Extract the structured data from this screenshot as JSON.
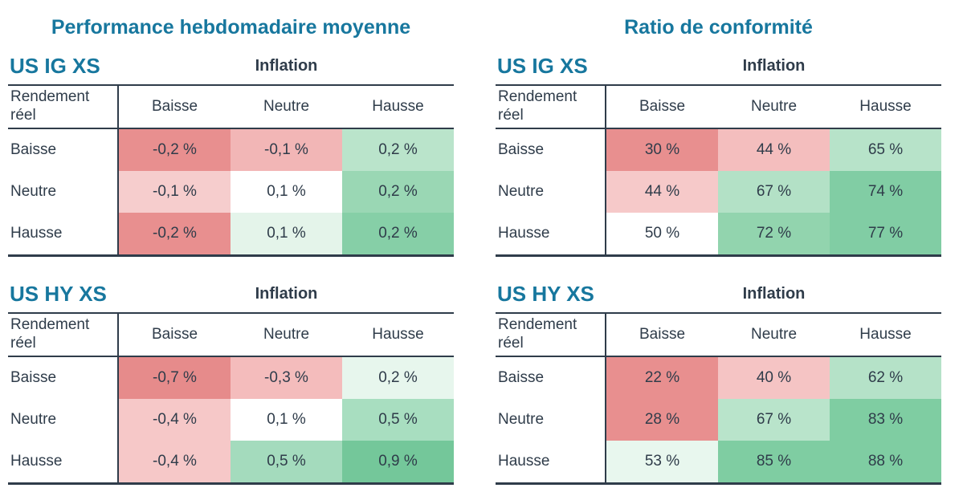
{
  "colors": {
    "accent_teal": "#17779e",
    "text_dark": "#2f3c4a",
    "rule_dark": "#2f3c4a",
    "background": "#ffffff"
  },
  "columns": [
    {
      "title": "Performance hebdomadaire moyenne",
      "tables": [
        {
          "name": "US IG XS",
          "group_header": "Inflation",
          "corner_label": "Rendement réel",
          "col_headers": [
            "Baisse",
            "Neutre",
            "Hausse"
          ],
          "rows": [
            {
              "label": "Baisse",
              "cells": [
                {
                  "text": "-0,2 %",
                  "bg": "#e88f8f"
                },
                {
                  "text": "-0,1 %",
                  "bg": "#f2b6b6"
                },
                {
                  "text": "0,2 %",
                  "bg": "#bae4cb"
                }
              ]
            },
            {
              "label": "Neutre",
              "cells": [
                {
                  "text": "-0,1 %",
                  "bg": "#f6cdcd"
                },
                {
                  "text": "0,1 %",
                  "bg": "#ffffff"
                },
                {
                  "text": "0,2 %",
                  "bg": "#9ad7b4"
                }
              ]
            },
            {
              "label": "Hausse",
              "cells": [
                {
                  "text": "-0,2 %",
                  "bg": "#e88f8f"
                },
                {
                  "text": "0,1 %",
                  "bg": "#e4f4ea"
                },
                {
                  "text": "0,2 %",
                  "bg": "#86cfa7"
                }
              ]
            }
          ]
        },
        {
          "name": "US HY XS",
          "group_header": "Inflation",
          "corner_label": "Rendement réel",
          "col_headers": [
            "Baisse",
            "Neutre",
            "Hausse"
          ],
          "rows": [
            {
              "label": "Baisse",
              "cells": [
                {
                  "text": "-0,7 %",
                  "bg": "#e68b8b"
                },
                {
                  "text": "-0,3 %",
                  "bg": "#f4bcbc"
                },
                {
                  "text": "0,2 %",
                  "bg": "#e7f6ed"
                }
              ]
            },
            {
              "label": "Neutre",
              "cells": [
                {
                  "text": "-0,4 %",
                  "bg": "#f6c8c8"
                },
                {
                  "text": "0,1 %",
                  "bg": "#ffffff"
                },
                {
                  "text": "0,5 %",
                  "bg": "#a8dec0"
                }
              ]
            },
            {
              "label": "Hausse",
              "cells": [
                {
                  "text": "-0,4 %",
                  "bg": "#f6c8c8"
                },
                {
                  "text": "0,5 %",
                  "bg": "#a4dbbd"
                },
                {
                  "text": "0,9 %",
                  "bg": "#74c79a"
                }
              ]
            }
          ]
        }
      ]
    },
    {
      "title": "Ratio de conformité",
      "tables": [
        {
          "name": "US IG XS",
          "group_header": "Inflation",
          "corner_label": "Rendement réel",
          "col_headers": [
            "Baisse",
            "Neutre",
            "Hausse"
          ],
          "rows": [
            {
              "label": "Baisse",
              "cells": [
                {
                  "text": "30 %",
                  "bg": "#e88f8f"
                },
                {
                  "text": "44 %",
                  "bg": "#f4bebe"
                },
                {
                  "text": "65 %",
                  "bg": "#b7e3c9"
                }
              ]
            },
            {
              "label": "Neutre",
              "cells": [
                {
                  "text": "44 %",
                  "bg": "#f6c9c9"
                },
                {
                  "text": "67 %",
                  "bg": "#b3e1c6"
                },
                {
                  "text": "74 %",
                  "bg": "#81cda4"
                }
              ]
            },
            {
              "label": "Hausse",
              "cells": [
                {
                  "text": "50 %",
                  "bg": "#ffffff"
                },
                {
                  "text": "72 %",
                  "bg": "#92d4ae"
                },
                {
                  "text": "77 %",
                  "bg": "#81cda4"
                }
              ]
            }
          ]
        },
        {
          "name": "US HY XS",
          "group_header": "Inflation",
          "corner_label": "Rendement réel",
          "col_headers": [
            "Baisse",
            "Neutre",
            "Hausse"
          ],
          "rows": [
            {
              "label": "Baisse",
              "cells": [
                {
                  "text": "22 %",
                  "bg": "#e88f8f"
                },
                {
                  "text": "40 %",
                  "bg": "#f5c4c4"
                },
                {
                  "text": "62 %",
                  "bg": "#b5e2c8"
                }
              ]
            },
            {
              "label": "Neutre",
              "cells": [
                {
                  "text": "28 %",
                  "bg": "#e88f8f"
                },
                {
                  "text": "67 %",
                  "bg": "#b9e4cb"
                },
                {
                  "text": "83 %",
                  "bg": "#7fcda2"
                }
              ]
            },
            {
              "label": "Hausse",
              "cells": [
                {
                  "text": "53 %",
                  "bg": "#e8f7ee"
                },
                {
                  "text": "85 %",
                  "bg": "#7fcda2"
                },
                {
                  "text": "88 %",
                  "bg": "#7fcda2"
                }
              ]
            }
          ]
        }
      ]
    }
  ],
  "chart_data": [
    {
      "type": "heatmap",
      "title": "Performance hebdomadaire moyenne — US IG XS",
      "x_group_label": "Inflation",
      "y_group_label": "Rendement réel",
      "x_categories": [
        "Baisse",
        "Neutre",
        "Hausse"
      ],
      "y_categories": [
        "Baisse",
        "Neutre",
        "Hausse"
      ],
      "unit": "%",
      "values": [
        [
          -0.2,
          -0.1,
          0.2
        ],
        [
          -0.1,
          0.1,
          0.2
        ],
        [
          -0.2,
          0.1,
          0.2
        ]
      ],
      "colormap": "red-white-green"
    },
    {
      "type": "heatmap",
      "title": "Performance hebdomadaire moyenne — US HY XS",
      "x_group_label": "Inflation",
      "y_group_label": "Rendement réel",
      "x_categories": [
        "Baisse",
        "Neutre",
        "Hausse"
      ],
      "y_categories": [
        "Baisse",
        "Neutre",
        "Hausse"
      ],
      "unit": "%",
      "values": [
        [
          -0.7,
          -0.3,
          0.2
        ],
        [
          -0.4,
          0.1,
          0.5
        ],
        [
          -0.4,
          0.5,
          0.9
        ]
      ],
      "colormap": "red-white-green"
    },
    {
      "type": "heatmap",
      "title": "Ratio de conformité — US IG XS",
      "x_group_label": "Inflation",
      "y_group_label": "Rendement réel",
      "x_categories": [
        "Baisse",
        "Neutre",
        "Hausse"
      ],
      "y_categories": [
        "Baisse",
        "Neutre",
        "Hausse"
      ],
      "unit": "%",
      "values": [
        [
          30,
          44,
          65
        ],
        [
          44,
          67,
          74
        ],
        [
          50,
          72,
          77
        ]
      ],
      "colormap": "red-white-green"
    },
    {
      "type": "heatmap",
      "title": "Ratio de conformité — US HY XS",
      "x_group_label": "Inflation",
      "y_group_label": "Rendement réel",
      "x_categories": [
        "Baisse",
        "Neutre",
        "Hausse"
      ],
      "y_categories": [
        "Baisse",
        "Neutre",
        "Hausse"
      ],
      "unit": "%",
      "values": [
        [
          22,
          40,
          62
        ],
        [
          28,
          67,
          83
        ],
        [
          53,
          85,
          88
        ]
      ],
      "colormap": "red-white-green"
    }
  ]
}
